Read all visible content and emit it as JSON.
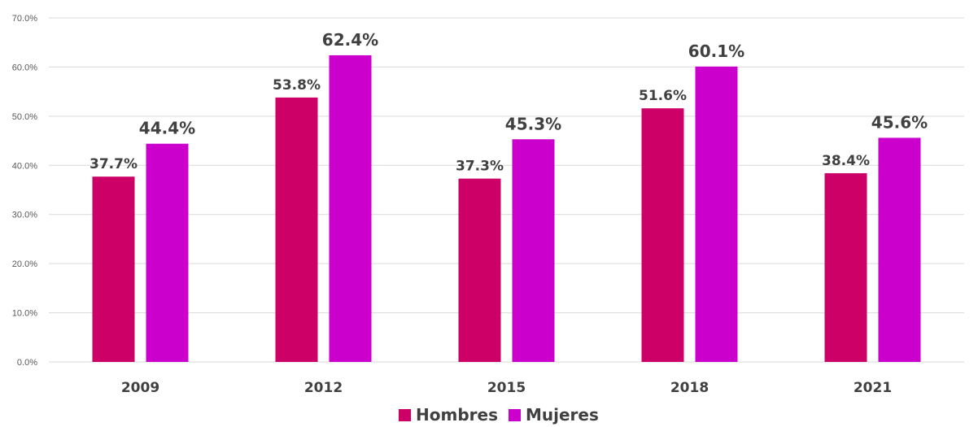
{
  "chart_data": {
    "type": "bar",
    "categories": [
      "2009",
      "2012",
      "2015",
      "2018",
      "2021"
    ],
    "series": [
      {
        "name": "Hombres",
        "color": "#cc0066",
        "values": [
          37.7,
          53.8,
          37.3,
          51.6,
          38.4
        ]
      },
      {
        "name": "Mujeres",
        "color": "#cc00cc",
        "values": [
          44.4,
          62.4,
          45.3,
          60.1,
          45.6
        ]
      }
    ],
    "data_labels": [
      [
        "37.7%",
        "53.8%",
        "37.3%",
        "51.6%",
        "38.4%"
      ],
      [
        "44.4%",
        "62.4%",
        "45.3%",
        "60.1%",
        "45.6%"
      ]
    ],
    "yticks": [
      "0.0%",
      "10.0%",
      "20.0%",
      "30.0%",
      "40.0%",
      "50.0%",
      "60.0%",
      "70.0%"
    ],
    "ylim": [
      0,
      70
    ],
    "title": "",
    "xlabel": "",
    "ylabel": "",
    "grid": true,
    "legend_position": "bottom-center"
  }
}
